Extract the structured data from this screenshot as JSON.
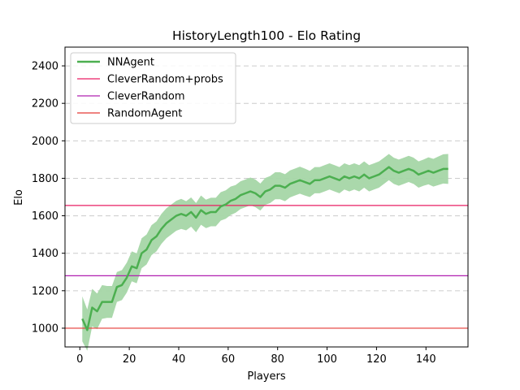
{
  "chart_data": {
    "type": "line",
    "title": "HistoryLength100 - Elo Rating",
    "xlabel": "Players",
    "ylabel": "Elo",
    "xlim": [
      -6,
      157
    ],
    "ylim": [
      900,
      2500
    ],
    "xticks": [
      0,
      20,
      40,
      60,
      80,
      100,
      120,
      140
    ],
    "yticks": [
      1000,
      1200,
      1400,
      1600,
      1800,
      2000,
      2200,
      2400
    ],
    "grid": "y-dashed",
    "legend_position": "top-left",
    "series": [
      {
        "name": "NNAgent",
        "color": "#4caf50",
        "band_color": "#a5d6a7",
        "x": [
          1,
          3,
          5,
          7,
          9,
          11,
          13,
          15,
          17,
          19,
          21,
          23,
          25,
          27,
          29,
          31,
          33,
          35,
          37,
          39,
          41,
          43,
          45,
          47,
          49,
          51,
          53,
          55,
          57,
          59,
          61,
          63,
          65,
          67,
          69,
          71,
          73,
          75,
          77,
          79,
          81,
          83,
          85,
          87,
          89,
          91,
          93,
          95,
          97,
          99,
          101,
          103,
          105,
          107,
          109,
          111,
          113,
          115,
          117,
          119,
          121,
          123,
          125,
          127,
          129,
          131,
          133,
          135,
          137,
          139,
          141,
          143,
          145,
          147,
          149
        ],
        "y": [
          1050,
          990,
          1110,
          1090,
          1140,
          1140,
          1140,
          1220,
          1230,
          1270,
          1330,
          1320,
          1400,
          1420,
          1470,
          1490,
          1530,
          1560,
          1580,
          1600,
          1610,
          1600,
          1620,
          1590,
          1630,
          1610,
          1620,
          1620,
          1650,
          1660,
          1680,
          1690,
          1710,
          1720,
          1730,
          1720,
          1700,
          1730,
          1740,
          1760,
          1760,
          1750,
          1770,
          1780,
          1790,
          1780,
          1770,
          1790,
          1790,
          1800,
          1810,
          1800,
          1790,
          1810,
          1800,
          1810,
          1800,
          1820,
          1800,
          1810,
          1820,
          1840,
          1860,
          1840,
          1830,
          1840,
          1850,
          1840,
          1820,
          1830,
          1840,
          1830,
          1840,
          1850,
          1850
        ],
        "band": [
          120,
          110,
          100,
          95,
          90,
          85,
          85,
          80,
          80,
          80,
          80,
          80,
          80,
          80,
          80,
          80,
          80,
          80,
          80,
          80,
          80,
          78,
          78,
          78,
          78,
          76,
          76,
          76,
          76,
          76,
          76,
          74,
          74,
          74,
          74,
          74,
          72,
          72,
          72,
          72,
          72,
          72,
          72,
          72,
          72,
          72,
          70,
          70,
          70,
          70,
          70,
          70,
          70,
          70,
          70,
          70,
          70,
          70,
          70,
          70,
          70,
          70,
          70,
          70,
          70,
          70,
          70,
          70,
          70,
          70,
          72,
          74,
          76,
          78,
          80
        ]
      }
    ],
    "hlines": [
      {
        "name": "CleverRandom+probs",
        "y": 1655,
        "color": "#e91e63"
      },
      {
        "name": "CleverRandom",
        "y": 1280,
        "color": "#b020b0"
      },
      {
        "name": "RandomAgent",
        "y": 1000,
        "color": "#e53935"
      }
    ]
  }
}
